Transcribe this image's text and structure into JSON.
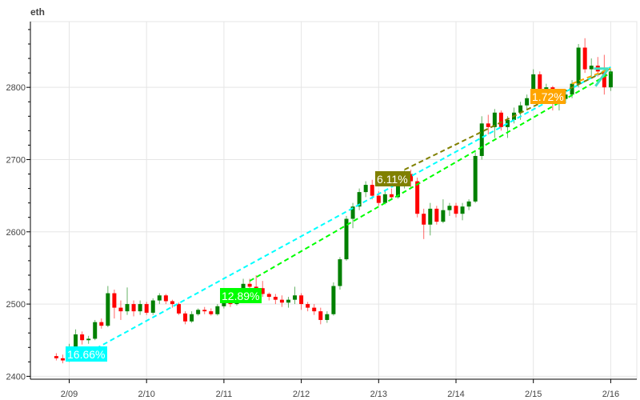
{
  "chart_data": {
    "type": "candlestick",
    "title": "eth",
    "xlabel": "",
    "ylabel": "",
    "ylim": [
      2396,
      2891
    ],
    "grid": true,
    "up_color": "#008000",
    "down_color": "#ff0000",
    "x_ticks": [
      "2/09",
      "2/10",
      "2/11",
      "2/12",
      "2/13",
      "2/14",
      "2/15",
      "2/16"
    ],
    "y_ticks": [
      2400,
      2500,
      2600,
      2700,
      2800
    ],
    "candles": [
      [
        "02-08 20:00",
        2428,
        2432,
        2422,
        2425
      ],
      [
        "02-08 22:00",
        2425,
        2430,
        2418,
        2422
      ],
      [
        "02-09 00:00",
        2422,
        2445,
        2420,
        2440
      ],
      [
        "02-09 02:00",
        2440,
        2465,
        2438,
        2458
      ],
      [
        "02-09 04:00",
        2458,
        2462,
        2444,
        2450
      ],
      [
        "02-09 06:00",
        2450,
        2456,
        2445,
        2452
      ],
      [
        "02-09 08:00",
        2452,
        2478,
        2450,
        2475
      ],
      [
        "02-09 10:00",
        2475,
        2480,
        2466,
        2470
      ],
      [
        "02-09 12:00",
        2470,
        2525,
        2468,
        2515
      ],
      [
        "02-09 14:00",
        2515,
        2520,
        2480,
        2495
      ],
      [
        "02-09 16:00",
        2495,
        2505,
        2478,
        2490
      ],
      [
        "02-09 18:00",
        2490,
        2523,
        2485,
        2500
      ],
      [
        "02-09 20:00",
        2500,
        2505,
        2483,
        2490
      ],
      [
        "02-09 22:00",
        2490,
        2505,
        2485,
        2500
      ],
      [
        "02-10 00:00",
        2500,
        2503,
        2485,
        2488
      ],
      [
        "02-10 02:00",
        2488,
        2508,
        2485,
        2505
      ],
      [
        "02-10 04:00",
        2505,
        2515,
        2500,
        2512
      ],
      [
        "02-10 06:00",
        2512,
        2514,
        2500,
        2504
      ],
      [
        "02-10 08:00",
        2504,
        2506,
        2495,
        2500
      ],
      [
        "02-10 10:00",
        2500,
        2502,
        2485,
        2487
      ],
      [
        "02-10 12:00",
        2487,
        2490,
        2472,
        2476
      ],
      [
        "02-10 14:00",
        2476,
        2490,
        2474,
        2486
      ],
      [
        "02-10 16:00",
        2486,
        2494,
        2484,
        2492
      ],
      [
        "02-10 18:00",
        2492,
        2496,
        2486,
        2490
      ],
      [
        "02-10 20:00",
        2490,
        2494,
        2484,
        2486
      ],
      [
        "02-10 22:00",
        2486,
        2500,
        2484,
        2497
      ],
      [
        "02-11 00:00",
        2497,
        2515,
        2494,
        2510
      ],
      [
        "02-11 02:00",
        2510,
        2514,
        2496,
        2500
      ],
      [
        "02-11 04:00",
        2500,
        2520,
        2498,
        2518
      ],
      [
        "02-11 06:00",
        2518,
        2535,
        2515,
        2528
      ],
      [
        "02-11 08:00",
        2528,
        2535,
        2520,
        2524
      ],
      [
        "02-11 10:00",
        2524,
        2540,
        2518,
        2522
      ],
      [
        "02-11 12:00",
        2522,
        2532,
        2510,
        2514
      ],
      [
        "02-11 14:00",
        2514,
        2516,
        2505,
        2510
      ],
      [
        "02-11 16:00",
        2510,
        2514,
        2500,
        2506
      ],
      [
        "02-11 18:00",
        2506,
        2512,
        2496,
        2502
      ],
      [
        "02-11 20:00",
        2502,
        2510,
        2495,
        2506
      ],
      [
        "02-11 22:00",
        2506,
        2524,
        2500,
        2512
      ],
      [
        "02-12 00:00",
        2512,
        2515,
        2492,
        2500
      ],
      [
        "02-12 02:00",
        2500,
        2503,
        2490,
        2495
      ],
      [
        "02-12 04:00",
        2495,
        2500,
        2485,
        2490
      ],
      [
        "02-12 06:00",
        2490,
        2495,
        2472,
        2478
      ],
      [
        "02-12 08:00",
        2478,
        2490,
        2474,
        2486
      ],
      [
        "02-12 10:00",
        2486,
        2530,
        2484,
        2525
      ],
      [
        "02-12 12:00",
        2525,
        2565,
        2520,
        2562
      ],
      [
        "02-12 14:00",
        2562,
        2622,
        2560,
        2618
      ],
      [
        "02-12 16:00",
        2618,
        2640,
        2605,
        2635
      ],
      [
        "02-12 18:00",
        2635,
        2660,
        2630,
        2655
      ],
      [
        "02-12 20:00",
        2655,
        2670,
        2648,
        2665
      ],
      [
        "02-12 22:00",
        2665,
        2672,
        2645,
        2650
      ],
      [
        "02-13 00:00",
        2650,
        2656,
        2636,
        2640
      ],
      [
        "02-13 02:00",
        2640,
        2658,
        2638,
        2652
      ],
      [
        "02-13 04:00",
        2652,
        2660,
        2645,
        2648
      ],
      [
        "02-13 06:00",
        2648,
        2670,
        2646,
        2665
      ],
      [
        "02-13 08:00",
        2665,
        2685,
        2660,
        2680
      ],
      [
        "02-13 10:00",
        2680,
        2686,
        2660,
        2670
      ],
      [
        "02-13 12:00",
        2670,
        2675,
        2620,
        2625
      ],
      [
        "02-13 14:00",
        2625,
        2632,
        2590,
        2610
      ],
      [
        "02-13 16:00",
        2610,
        2640,
        2595,
        2632
      ],
      [
        "02-13 18:00",
        2632,
        2636,
        2610,
        2614
      ],
      [
        "02-13 20:00",
        2614,
        2645,
        2612,
        2630
      ],
      [
        "02-13 22:00",
        2630,
        2640,
        2622,
        2636
      ],
      [
        "02-14 00:00",
        2636,
        2640,
        2620,
        2625
      ],
      [
        "02-14 02:00",
        2625,
        2640,
        2616,
        2635
      ],
      [
        "02-14 04:00",
        2635,
        2645,
        2630,
        2642
      ],
      [
        "02-14 06:00",
        2642,
        2710,
        2640,
        2705
      ],
      [
        "02-14 08:00",
        2705,
        2760,
        2700,
        2750
      ],
      [
        "02-14 10:00",
        2750,
        2762,
        2735,
        2745
      ],
      [
        "02-14 12:00",
        2745,
        2770,
        2730,
        2765
      ],
      [
        "02-14 14:00",
        2765,
        2768,
        2740,
        2745
      ],
      [
        "02-14 16:00",
        2745,
        2760,
        2730,
        2755
      ],
      [
        "02-14 18:00",
        2755,
        2772,
        2750,
        2765
      ],
      [
        "02-14 20:00",
        2765,
        2780,
        2755,
        2775
      ],
      [
        "02-14 22:00",
        2775,
        2790,
        2770,
        2785
      ],
      [
        "02-15 00:00",
        2785,
        2825,
        2780,
        2818
      ],
      [
        "02-15 02:00",
        2818,
        2822,
        2780,
        2790
      ],
      [
        "02-15 04:00",
        2790,
        2805,
        2782,
        2800
      ],
      [
        "02-15 06:00",
        2800,
        2802,
        2768,
        2778
      ],
      [
        "02-15 08:00",
        2778,
        2790,
        2768,
        2784
      ],
      [
        "02-15 10:00",
        2784,
        2795,
        2778,
        2790
      ],
      [
        "02-15 12:00",
        2790,
        2810,
        2785,
        2805
      ],
      [
        "02-15 14:00",
        2805,
        2860,
        2800,
        2855
      ],
      [
        "02-15 16:00",
        2855,
        2868,
        2820,
        2825
      ],
      [
        "02-15 18:00",
        2825,
        2840,
        2815,
        2830
      ],
      [
        "02-15 20:00",
        2830,
        2842,
        2815,
        2822
      ],
      [
        "02-15 22:00",
        2822,
        2845,
        2790,
        2800
      ],
      [
        "02-16 00:00",
        2800,
        2825,
        2795,
        2822
      ]
    ],
    "trend_lines": [
      {
        "label": "16.66%",
        "color": "#00ffff",
        "start": [
          "02-09 04:00",
          2428
        ],
        "end": [
          "02-16 00:00",
          2828
        ]
      },
      {
        "label": "12.89%",
        "color": "#00ff00",
        "start": [
          "02-11 08:00",
          2532
        ],
        "end": [
          "02-16 00:00",
          2820
        ]
      },
      {
        "label": "6.11%",
        "color": "#808000",
        "start": [
          "02-13 08:00",
          2686
        ],
        "end": [
          "02-16 00:00",
          2826
        ]
      },
      {
        "label": "1.72%",
        "color": "#ffa500",
        "start": [
          "02-15 12:00",
          2805
        ],
        "end": [
          "02-16 00:00",
          2826
        ]
      }
    ],
    "arrow_color": "#40e0c0"
  }
}
